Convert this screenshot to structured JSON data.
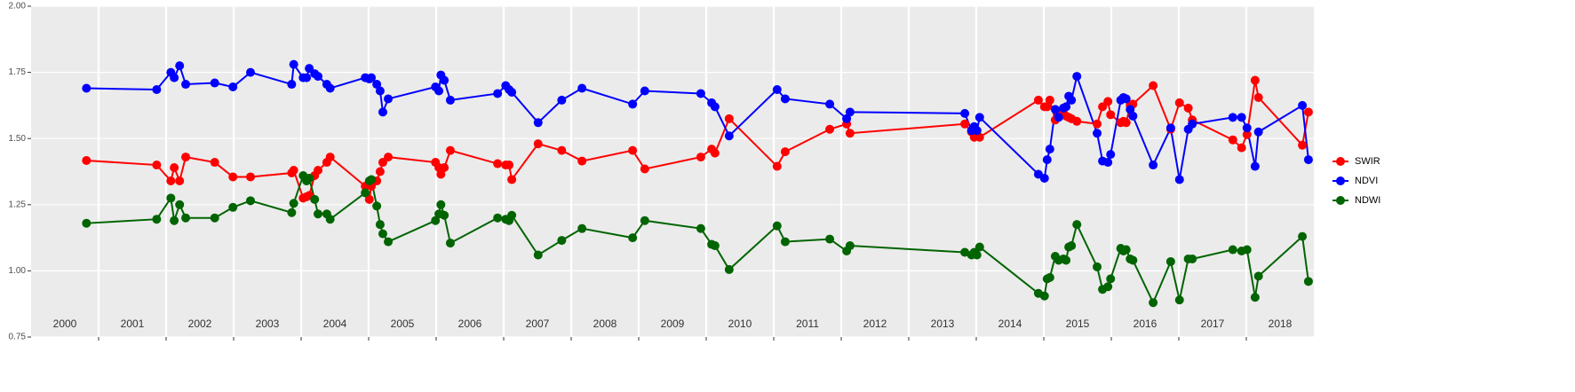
{
  "chart_data": {
    "type": "line",
    "x": [
      2000.82,
      2001.86,
      2002.07,
      2002.12,
      2002.2,
      2002.29,
      2002.72,
      2002.99,
      2003.25,
      2003.86,
      2003.89,
      2004.03,
      2004.08,
      2004.12,
      2004.2,
      2004.25,
      2004.38,
      2004.43,
      2004.95,
      2005.01,
      2005.04,
      2005.12,
      2005.17,
      2005.21,
      2005.29,
      2005.99,
      2006.04,
      2006.07,
      2006.12,
      2006.21,
      2006.91,
      2007.03,
      2007.08,
      2007.12,
      2007.51,
      2007.86,
      2008.16,
      2008.91,
      2009.09,
      2009.92,
      2010.08,
      2010.13,
      2010.34,
      2011.05,
      2011.17,
      2011.83,
      2012.08,
      2012.13,
      2013.83,
      2013.93,
      2013.97,
      2014.01,
      2014.05,
      2014.92,
      2015.01,
      2015.05,
      2015.09,
      2015.17,
      2015.22,
      2015.29,
      2015.33,
      2015.37,
      2015.41,
      2015.49,
      2015.79,
      2015.87,
      2015.95,
      2015.99,
      2016.14,
      2016.18,
      2016.22,
      2016.28,
      2016.32,
      2016.62,
      2016.88,
      2017.01,
      2017.14,
      2017.2,
      2017.8,
      2017.93,
      2018.01,
      2018.13,
      2018.18,
      2018.83,
      2018.92
    ],
    "series": [
      {
        "name": "SWIR",
        "color": "#ff0000",
        "values": [
          1.417,
          1.4,
          1.34,
          1.39,
          1.34,
          1.43,
          1.41,
          1.355,
          1.355,
          1.37,
          1.38,
          1.275,
          1.28,
          1.285,
          1.36,
          1.38,
          1.41,
          1.43,
          1.32,
          1.27,
          1.32,
          1.34,
          1.375,
          1.41,
          1.43,
          1.41,
          1.39,
          1.365,
          1.39,
          1.455,
          1.405,
          1.4,
          1.4,
          1.345,
          1.48,
          1.455,
          1.415,
          1.455,
          1.385,
          1.43,
          1.46,
          1.445,
          1.575,
          1.395,
          1.45,
          1.535,
          1.555,
          1.52,
          1.555,
          1.525,
          1.505,
          1.53,
          1.505,
          1.645,
          1.62,
          1.62,
          1.645,
          1.57,
          1.59,
          1.61,
          1.585,
          1.58,
          1.575,
          1.565,
          1.555,
          1.62,
          1.64,
          1.59,
          1.56,
          1.565,
          1.56,
          1.625,
          1.63,
          1.7,
          1.535,
          1.635,
          1.615,
          1.57,
          1.495,
          1.465,
          1.515,
          1.72,
          1.655,
          1.475,
          1.6
        ]
      },
      {
        "name": "NDVI",
        "color": "#0000ff",
        "values": [
          1.69,
          1.685,
          1.75,
          1.73,
          1.775,
          1.705,
          1.71,
          1.695,
          1.75,
          1.705,
          1.78,
          1.73,
          1.73,
          1.765,
          1.745,
          1.735,
          1.705,
          1.69,
          1.73,
          1.725,
          1.73,
          1.705,
          1.68,
          1.6,
          1.65,
          1.695,
          1.68,
          1.74,
          1.72,
          1.645,
          1.67,
          1.7,
          1.685,
          1.675,
          1.56,
          1.645,
          1.69,
          1.63,
          1.68,
          1.67,
          1.635,
          1.62,
          1.51,
          1.685,
          1.65,
          1.63,
          1.575,
          1.6,
          1.595,
          1.53,
          1.545,
          1.53,
          1.58,
          1.365,
          1.35,
          1.42,
          1.46,
          1.61,
          1.58,
          1.615,
          1.62,
          1.66,
          1.645,
          1.735,
          1.52,
          1.415,
          1.41,
          1.44,
          1.645,
          1.655,
          1.65,
          1.61,
          1.585,
          1.4,
          1.54,
          1.345,
          1.535,
          1.555,
          1.58,
          1.58,
          1.54,
          1.395,
          1.525,
          1.625,
          1.42
        ]
      },
      {
        "name": "NDWI",
        "color": "#006400",
        "values": [
          1.18,
          1.195,
          1.275,
          1.19,
          1.25,
          1.2,
          1.2,
          1.24,
          1.265,
          1.22,
          1.255,
          1.36,
          1.34,
          1.35,
          1.27,
          1.215,
          1.215,
          1.195,
          1.295,
          1.34,
          1.345,
          1.245,
          1.175,
          1.14,
          1.11,
          1.19,
          1.215,
          1.25,
          1.21,
          1.105,
          1.2,
          1.195,
          1.19,
          1.21,
          1.06,
          1.115,
          1.16,
          1.125,
          1.19,
          1.16,
          1.1,
          1.095,
          1.005,
          1.17,
          1.11,
          1.12,
          1.075,
          1.095,
          1.07,
          1.06,
          1.07,
          1.06,
          1.09,
          0.915,
          0.905,
          0.97,
          0.975,
          1.055,
          1.04,
          1.045,
          1.04,
          1.09,
          1.095,
          1.175,
          1.015,
          0.93,
          0.94,
          0.97,
          1.085,
          1.075,
          1.08,
          1.045,
          1.04,
          0.88,
          1.035,
          0.89,
          1.045,
          1.045,
          1.08,
          1.075,
          1.08,
          0.9,
          0.98,
          1.13,
          0.96
        ]
      }
    ],
    "xlim": [
      2000,
      2019
    ],
    "xgrid": [
      2001,
      2002,
      2003,
      2004,
      2005,
      2006,
      2007,
      2008,
      2009,
      2010,
      2011,
      2012,
      2013,
      2014,
      2015,
      2016,
      2017,
      2018
    ],
    "xticks": [
      {
        "value": 2000.5,
        "label": "2000"
      },
      {
        "value": 2001.5,
        "label": "2001"
      },
      {
        "value": 2002.5,
        "label": "2002"
      },
      {
        "value": 2003.5,
        "label": "2003"
      },
      {
        "value": 2004.5,
        "label": "2004"
      },
      {
        "value": 2005.5,
        "label": "2005"
      },
      {
        "value": 2006.5,
        "label": "2006"
      },
      {
        "value": 2007.5,
        "label": "2007"
      },
      {
        "value": 2008.5,
        "label": "2008"
      },
      {
        "value": 2009.5,
        "label": "2009"
      },
      {
        "value": 2010.5,
        "label": "2010"
      },
      {
        "value": 2011.5,
        "label": "2011"
      },
      {
        "value": 2012.5,
        "label": "2012"
      },
      {
        "value": 2013.5,
        "label": "2013"
      },
      {
        "value": 2014.5,
        "label": "2014"
      },
      {
        "value": 2015.5,
        "label": "2015"
      },
      {
        "value": 2016.5,
        "label": "2016"
      },
      {
        "value": 2017.5,
        "label": "2017"
      },
      {
        "value": 2018.5,
        "label": "2018"
      }
    ],
    "ylim": [
      0.75,
      2.0
    ],
    "yticks": [
      {
        "value": 0.75,
        "label": "0.75"
      },
      {
        "value": 1.0,
        "label": "1.00"
      },
      {
        "value": 1.25,
        "label": "1.25"
      },
      {
        "value": 1.5,
        "label": "1.50"
      },
      {
        "value": 1.75,
        "label": "1.75"
      },
      {
        "value": 2.0,
        "label": "2.00"
      }
    ],
    "grid": true,
    "legend": "right"
  }
}
